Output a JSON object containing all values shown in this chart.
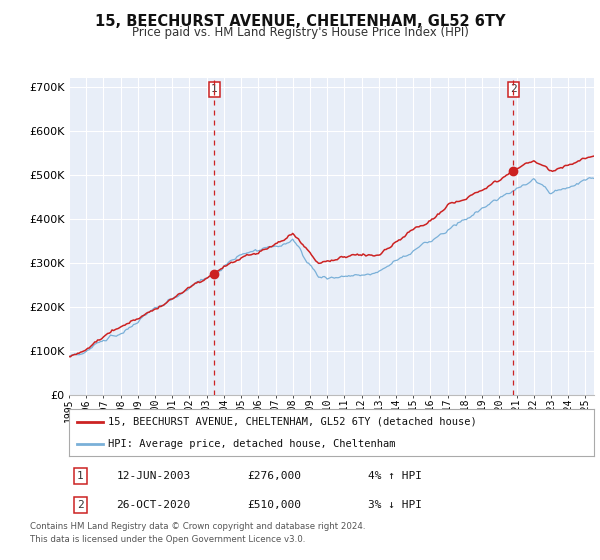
{
  "title": "15, BEECHURST AVENUE, CHELTENHAM, GL52 6TY",
  "subtitle": "Price paid vs. HM Land Registry's House Price Index (HPI)",
  "legend_line1": "15, BEECHURST AVENUE, CHELTENHAM, GL52 6TY (detached house)",
  "legend_line2": "HPI: Average price, detached house, Cheltenham",
  "sale1_date": "12-JUN-2003",
  "sale1_price": "£276,000",
  "sale1_hpi": "4% ↑ HPI",
  "sale2_date": "26-OCT-2020",
  "sale2_price": "£510,000",
  "sale2_hpi": "3% ↓ HPI",
  "footer1": "Contains HM Land Registry data © Crown copyright and database right 2024.",
  "footer2": "This data is licensed under the Open Government Licence v3.0.",
  "hpi_color": "#7ab0d8",
  "price_color": "#cc2222",
  "dot_color": "#cc2222",
  "vline_color": "#cc2222",
  "plot_bg": "#e8eef8",
  "grid_color": "#ffffff",
  "ylim_min": 0,
  "ylim_max": 720000,
  "year_start": 1995,
  "year_end": 2025,
  "sale1_year": 2003.45,
  "sale2_year": 2020.82
}
